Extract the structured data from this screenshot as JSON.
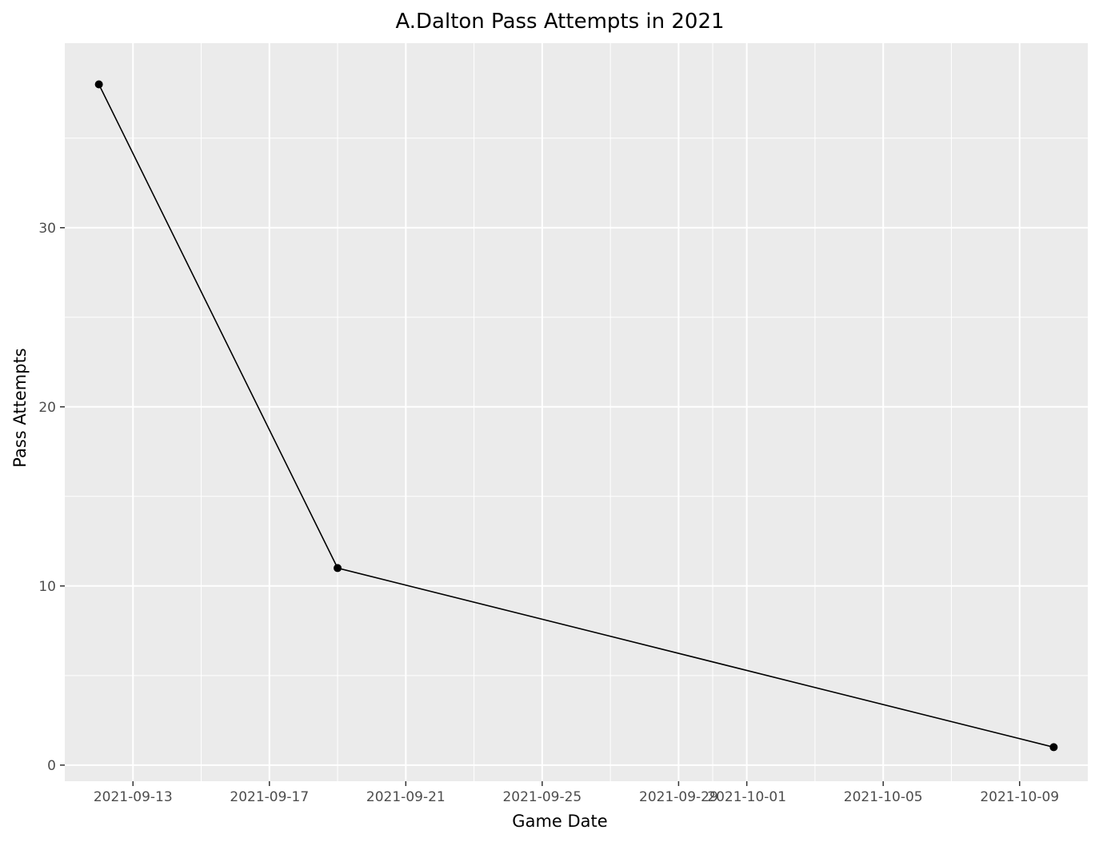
{
  "chart_data": {
    "type": "line",
    "title": "A.Dalton Pass Attempts in 2021",
    "xlabel": "Game Date",
    "ylabel": "Pass Attempts",
    "x_type": "date",
    "xlim": [
      "2021-09-11T00:00",
      "2021-10-11T00:00"
    ],
    "ylim": [
      -0.9,
      40.3
    ],
    "x_ticks": [
      "2021-09-13",
      "2021-09-17",
      "2021-09-21",
      "2021-09-25",
      "2021-09-29",
      "2021-10-01",
      "2021-10-05",
      "2021-10-09"
    ],
    "x_tick_labels": [
      "2021-09-13",
      "2021-09-17",
      "2021-09-21",
      "2021-09-25",
      "2021-09-29",
      "2021-10-01",
      "2021-10-05",
      "2021-10-09"
    ],
    "x_minor_ticks": [
      "2021-09-15",
      "2021-09-19",
      "2021-09-23",
      "2021-09-27",
      "2021-09-30",
      "2021-10-03",
      "2021-10-07"
    ],
    "y_ticks": [
      0,
      10,
      20,
      30
    ],
    "y_tick_labels": [
      "0",
      "10",
      "20",
      "30"
    ],
    "y_minor_ticks": [
      5,
      15,
      25,
      35
    ],
    "series": [
      {
        "x": [
          "2021-09-12",
          "2021-09-19",
          "2021-10-10"
        ],
        "y": [
          38,
          11,
          1
        ]
      }
    ],
    "grid": true,
    "legend": false,
    "colors": {
      "panel": "#ebebeb",
      "grid": "#ffffff",
      "line": "#000000",
      "point": "#000000",
      "tick_text": "#4d4d4d"
    }
  }
}
